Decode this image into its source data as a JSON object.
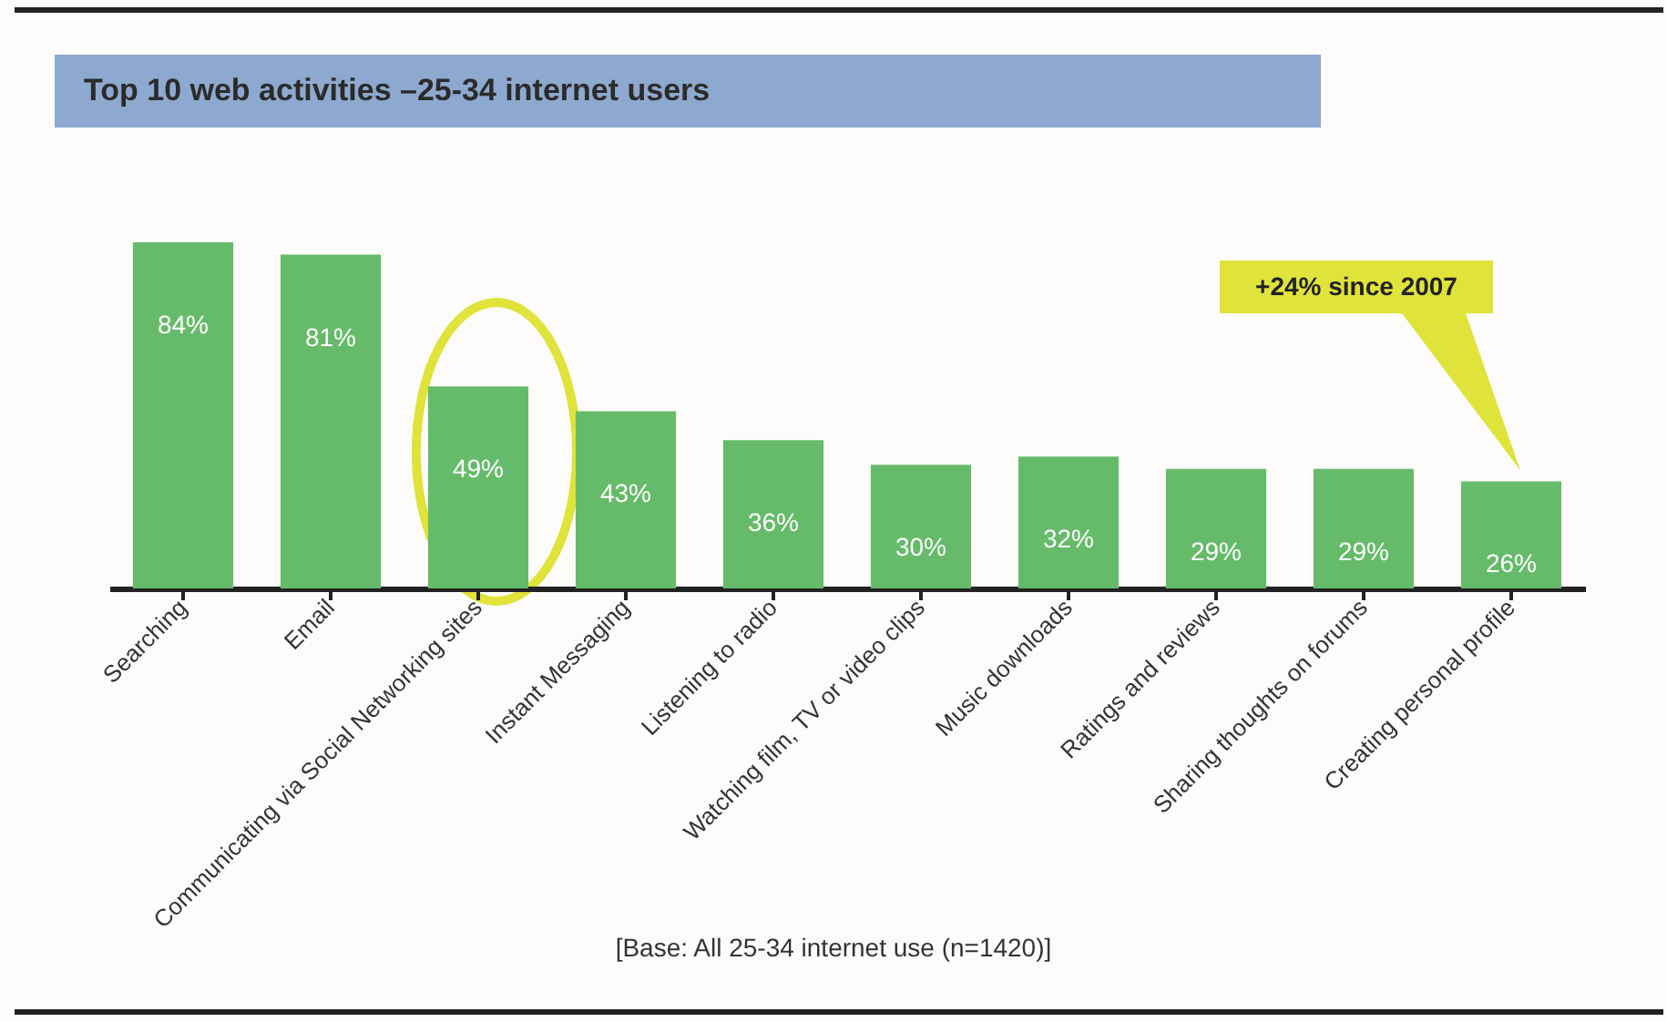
{
  "chart_data": {
    "type": "bar",
    "title": "Top 10 web activities –25-34 internet users",
    "categories": [
      "Searching",
      "Email",
      "Communicating via Social Networking sites",
      "Instant Messaging",
      "Listening to radio",
      "Watching film, TV or video clips",
      "Music downloads",
      "Ratings and reviews",
      "Sharing thoughts on forums",
      "Creating personal profile"
    ],
    "values": [
      84,
      81,
      49,
      43,
      36,
      30,
      32,
      29,
      29,
      26
    ],
    "value_labels": [
      "84%",
      "81%",
      "49%",
      "43%",
      "36%",
      "30%",
      "32%",
      "29%",
      "29%",
      "26%"
    ],
    "color": "#66bb6a",
    "annotations": [
      "+24% since 2007",
      "[Base: All 25-34 internet use (n=1420)]"
    ]
  }
}
